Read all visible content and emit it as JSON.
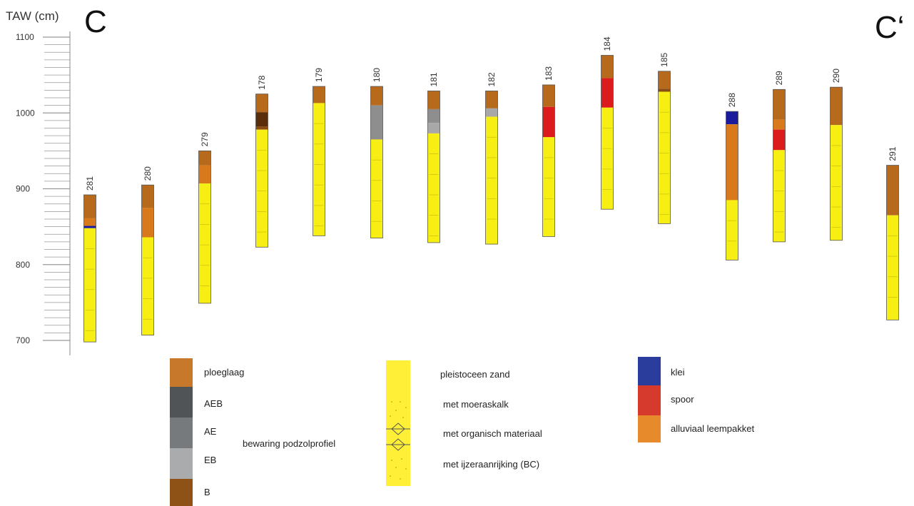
{
  "axis": {
    "label": "TAW (cm)",
    "ticks": [
      "1100",
      "1000",
      "900",
      "800",
      "700"
    ],
    "min": 690,
    "max": 1105
  },
  "section": {
    "start": "C",
    "end": "C‘"
  },
  "colors": {
    "ploeglaag": "#b86a1c",
    "AEB": "#5a2e0a",
    "AE": "#8e8e8e",
    "EB": "#a8a8a8",
    "B": "#8b4c14",
    "pleistoceen": "#f7ef14",
    "klei": "#1a1a9c",
    "spoor": "#dc1c1c",
    "alluviaal": "#d87a1c",
    "leg_ploeglaag": "#c8782a",
    "leg_AEB": "#505456",
    "leg_AE": "#777a7c",
    "leg_EB": "#a9abac",
    "leg_B": "#8e5216",
    "leg_zand": "#fff037",
    "leg_klei": "#2b3d9c",
    "leg_spoor": "#d63a2c",
    "leg_alluviaal": "#e68a2c"
  },
  "boreholes": [
    {
      "id": "281",
      "top": 892,
      "bottom": 698,
      "layers": [
        {
          "from": 892,
          "to": 861,
          "type": "ploeglaag"
        },
        {
          "from": 861,
          "to": 851,
          "type": "alluviaal"
        },
        {
          "from": 851,
          "to": 848,
          "type": "klei"
        },
        {
          "from": 848,
          "to": 698,
          "type": "pleistoceen"
        }
      ]
    },
    {
      "id": "280",
      "top": 905,
      "bottom": 707,
      "layers": [
        {
          "from": 905,
          "to": 875,
          "type": "ploeglaag"
        },
        {
          "from": 875,
          "to": 836,
          "type": "alluviaal"
        },
        {
          "from": 836,
          "to": 707,
          "type": "pleistoceen"
        }
      ]
    },
    {
      "id": "279",
      "top": 950,
      "bottom": 749,
      "layers": [
        {
          "from": 950,
          "to": 931,
          "type": "ploeglaag"
        },
        {
          "from": 931,
          "to": 907,
          "type": "alluviaal"
        },
        {
          "from": 907,
          "to": 749,
          "type": "pleistoceen"
        }
      ]
    },
    {
      "id": "178",
      "top": 1025,
      "bottom": 823,
      "layers": [
        {
          "from": 1025,
          "to": 1001,
          "type": "ploeglaag"
        },
        {
          "from": 1001,
          "to": 982,
          "type": "AEB"
        },
        {
          "from": 982,
          "to": 978,
          "type": "B"
        },
        {
          "from": 978,
          "to": 823,
          "type": "pleistoceen"
        }
      ]
    },
    {
      "id": "179",
      "top": 1035,
      "bottom": 838,
      "layers": [
        {
          "from": 1035,
          "to": 1013,
          "type": "ploeglaag"
        },
        {
          "from": 1013,
          "to": 838,
          "type": "pleistoceen"
        }
      ]
    },
    {
      "id": "180",
      "top": 1035,
      "bottom": 835,
      "layers": [
        {
          "from": 1035,
          "to": 1010,
          "type": "ploeglaag"
        },
        {
          "from": 1010,
          "to": 965,
          "type": "AE"
        },
        {
          "from": 965,
          "to": 835,
          "type": "pleistoceen"
        }
      ]
    },
    {
      "id": "181",
      "top": 1029,
      "bottom": 829,
      "layers": [
        {
          "from": 1029,
          "to": 1005,
          "type": "ploeglaag"
        },
        {
          "from": 1005,
          "to": 987,
          "type": "AE"
        },
        {
          "from": 987,
          "to": 973,
          "type": "EB"
        },
        {
          "from": 973,
          "to": 829,
          "type": "pleistoceen"
        }
      ]
    },
    {
      "id": "182",
      "top": 1029,
      "bottom": 827,
      "layers": [
        {
          "from": 1029,
          "to": 1006,
          "type": "ploeglaag"
        },
        {
          "from": 1006,
          "to": 995,
          "type": "EB"
        },
        {
          "from": 995,
          "to": 827,
          "type": "pleistoceen"
        }
      ]
    },
    {
      "id": "183",
      "top": 1037,
      "bottom": 837,
      "layers": [
        {
          "from": 1037,
          "to": 1008,
          "type": "ploeglaag"
        },
        {
          "from": 1008,
          "to": 968,
          "type": "spoor"
        },
        {
          "from": 968,
          "to": 837,
          "type": "pleistoceen"
        }
      ]
    },
    {
      "id": "184",
      "top": 1076,
      "bottom": 873,
      "layers": [
        {
          "from": 1076,
          "to": 1046,
          "type": "ploeglaag"
        },
        {
          "from": 1046,
          "to": 1007,
          "type": "spoor"
        },
        {
          "from": 1007,
          "to": 873,
          "type": "pleistoceen"
        }
      ]
    },
    {
      "id": "185",
      "top": 1055,
      "bottom": 854,
      "layers": [
        {
          "from": 1055,
          "to": 1032,
          "type": "ploeglaag"
        },
        {
          "from": 1032,
          "to": 1028,
          "type": "B"
        },
        {
          "from": 1028,
          "to": 854,
          "type": "pleistoceen"
        }
      ]
    },
    {
      "id": "288",
      "top": 1002,
      "bottom": 806,
      "layers": [
        {
          "from": 1002,
          "to": 985,
          "type": "klei"
        },
        {
          "from": 985,
          "to": 885,
          "type": "alluviaal"
        },
        {
          "from": 885,
          "to": 806,
          "type": "pleistoceen"
        }
      ]
    },
    {
      "id": "289",
      "top": 1031,
      "bottom": 830,
      "layers": [
        {
          "from": 1031,
          "to": 991,
          "type": "ploeglaag"
        },
        {
          "from": 991,
          "to": 978,
          "type": "alluviaal"
        },
        {
          "from": 978,
          "to": 951,
          "type": "spoor"
        },
        {
          "from": 951,
          "to": 830,
          "type": "pleistoceen"
        }
      ]
    },
    {
      "id": "290",
      "top": 1034,
      "bottom": 832,
      "layers": [
        {
          "from": 1034,
          "to": 984,
          "type": "ploeglaag"
        },
        {
          "from": 984,
          "to": 832,
          "type": "pleistoceen"
        }
      ]
    },
    {
      "id": "291",
      "top": 931,
      "bottom": 727,
      "layers": [
        {
          "from": 931,
          "to": 865,
          "type": "ploeglaag"
        },
        {
          "from": 865,
          "to": 727,
          "type": "pleistoceen"
        }
      ]
    }
  ],
  "legend": {
    "ploeglaag": "ploeglaag",
    "AEB": "AEB",
    "AE": "AE",
    "EB": "EB",
    "B": "B",
    "podzol": "bewaring podzolprofiel",
    "zand": "pleistoceen zand",
    "moeraskalk": "met moeraskalk",
    "organisch": "met organisch materiaal",
    "ijzer": "met ijzeraanrijking (BC)",
    "klei": "klei",
    "spoor": "spoor",
    "alluviaal": "alluviaal leempakket"
  }
}
